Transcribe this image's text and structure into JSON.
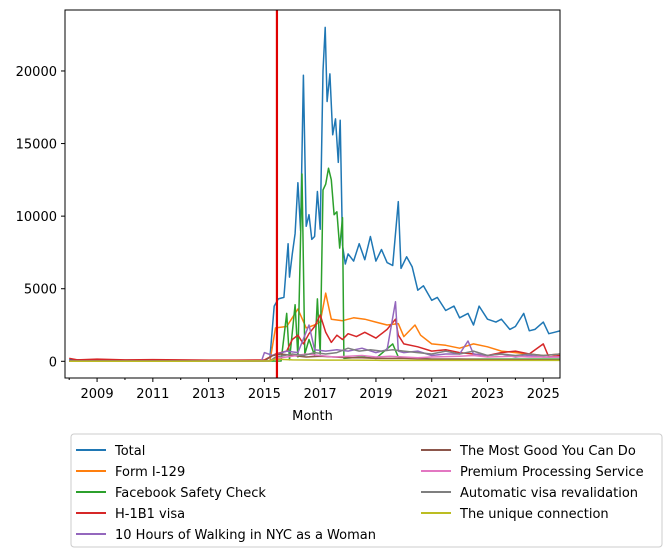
{
  "chart_data": {
    "type": "line",
    "title": "",
    "xlabel": "Month",
    "ylabel": "",
    "xlim": [
      2007.85,
      2025.6
    ],
    "ylim": [
      -1150,
      24200
    ],
    "x_ticks": [
      2009,
      2011,
      2013,
      2015,
      2017,
      2019,
      2021,
      2023,
      2025
    ],
    "y_ticks": [
      0,
      5000,
      10000,
      15000,
      20000
    ],
    "grid": false,
    "legend_placement": "below plot, two columns",
    "marker_line": {
      "x": 2015.45,
      "color": "#e00000"
    },
    "series": [
      {
        "name": "Total",
        "color": "#1f77b4",
        "points": [
          [
            2008.0,
            120
          ],
          [
            2008.5,
            100
          ],
          [
            2009,
            90
          ],
          [
            2010,
            80
          ],
          [
            2011,
            80
          ],
          [
            2012,
            70
          ],
          [
            2013,
            60
          ],
          [
            2014,
            60
          ],
          [
            2015.0,
            60
          ],
          [
            2015.2,
            300
          ],
          [
            2015.35,
            3800
          ],
          [
            2015.5,
            4300
          ],
          [
            2015.7,
            4400
          ],
          [
            2015.85,
            8100
          ],
          [
            2015.9,
            5800
          ],
          [
            2016.0,
            7400
          ],
          [
            2016.1,
            8800
          ],
          [
            2016.2,
            12300
          ],
          [
            2016.3,
            9000
          ],
          [
            2016.4,
            19700
          ],
          [
            2016.5,
            9300
          ],
          [
            2016.6,
            10100
          ],
          [
            2016.7,
            8400
          ],
          [
            2016.8,
            8600
          ],
          [
            2016.9,
            11700
          ],
          [
            2017.0,
            9100
          ],
          [
            2017.1,
            20000
          ],
          [
            2017.18,
            23000
          ],
          [
            2017.25,
            17900
          ],
          [
            2017.35,
            19800
          ],
          [
            2017.45,
            15600
          ],
          [
            2017.55,
            16700
          ],
          [
            2017.65,
            13700
          ],
          [
            2017.72,
            16600
          ],
          [
            2017.8,
            8000
          ],
          [
            2017.9,
            6700
          ],
          [
            2018.0,
            7400
          ],
          [
            2018.2,
            6900
          ],
          [
            2018.4,
            8100
          ],
          [
            2018.6,
            7000
          ],
          [
            2018.8,
            8600
          ],
          [
            2019.0,
            6900
          ],
          [
            2019.2,
            7700
          ],
          [
            2019.4,
            6800
          ],
          [
            2019.6,
            6600
          ],
          [
            2019.8,
            11000
          ],
          [
            2019.9,
            6400
          ],
          [
            2020.1,
            7200
          ],
          [
            2020.3,
            6500
          ],
          [
            2020.5,
            4900
          ],
          [
            2020.7,
            5200
          ],
          [
            2021.0,
            4200
          ],
          [
            2021.2,
            4400
          ],
          [
            2021.5,
            3500
          ],
          [
            2021.8,
            3800
          ],
          [
            2022.0,
            3000
          ],
          [
            2022.3,
            3300
          ],
          [
            2022.5,
            2500
          ],
          [
            2022.7,
            3800
          ],
          [
            2023.0,
            2900
          ],
          [
            2023.3,
            2700
          ],
          [
            2023.5,
            2900
          ],
          [
            2023.8,
            2200
          ],
          [
            2024.0,
            2400
          ],
          [
            2024.3,
            3300
          ],
          [
            2024.5,
            2100
          ],
          [
            2024.7,
            2200
          ],
          [
            2025.0,
            2700
          ],
          [
            2025.2,
            1900
          ],
          [
            2025.4,
            2000
          ],
          [
            2025.6,
            2100
          ]
        ]
      },
      {
        "name": "Form I-129",
        "color": "#ff7f0e",
        "points": [
          [
            2008.0,
            20
          ],
          [
            2010,
            20
          ],
          [
            2012,
            20
          ],
          [
            2014,
            20
          ],
          [
            2015.2,
            30
          ],
          [
            2015.4,
            2300
          ],
          [
            2015.8,
            2400
          ],
          [
            2016.0,
            3000
          ],
          [
            2016.2,
            3600
          ],
          [
            2016.5,
            2300
          ],
          [
            2016.8,
            2500
          ],
          [
            2017.0,
            2700
          ],
          [
            2017.2,
            4700
          ],
          [
            2017.4,
            2900
          ],
          [
            2017.8,
            2800
          ],
          [
            2018.2,
            3000
          ],
          [
            2018.6,
            2900
          ],
          [
            2019.0,
            2700
          ],
          [
            2019.4,
            2500
          ],
          [
            2019.8,
            2600
          ],
          [
            2020.0,
            1700
          ],
          [
            2020.4,
            2500
          ],
          [
            2020.6,
            1800
          ],
          [
            2021.0,
            1200
          ],
          [
            2021.5,
            1100
          ],
          [
            2022.0,
            900
          ],
          [
            2022.5,
            1200
          ],
          [
            2023.0,
            1000
          ],
          [
            2023.5,
            700
          ],
          [
            2024.0,
            600
          ],
          [
            2024.5,
            500
          ],
          [
            2025.0,
            400
          ],
          [
            2025.6,
            500
          ]
        ]
      },
      {
        "name": "Facebook Safety Check",
        "color": "#2ca02c",
        "points": [
          [
            2008.0,
            10
          ],
          [
            2011,
            10
          ],
          [
            2014,
            10
          ],
          [
            2015.6,
            20
          ],
          [
            2015.8,
            3300
          ],
          [
            2015.9,
            100
          ],
          [
            2016.1,
            3900
          ],
          [
            2016.2,
            300
          ],
          [
            2016.35,
            12900
          ],
          [
            2016.45,
            500
          ],
          [
            2016.6,
            1500
          ],
          [
            2016.8,
            400
          ],
          [
            2016.9,
            4300
          ],
          [
            2017.0,
            500
          ],
          [
            2017.1,
            11800
          ],
          [
            2017.2,
            12200
          ],
          [
            2017.3,
            13300
          ],
          [
            2017.4,
            12500
          ],
          [
            2017.5,
            10100
          ],
          [
            2017.6,
            10300
          ],
          [
            2017.7,
            7800
          ],
          [
            2017.8,
            9900
          ],
          [
            2017.85,
            200
          ],
          [
            2018.5,
            300
          ],
          [
            2019.0,
            200
          ],
          [
            2019.6,
            1200
          ],
          [
            2019.8,
            300
          ],
          [
            2020.5,
            200
          ],
          [
            2021,
            150
          ],
          [
            2022,
            150
          ],
          [
            2023,
            150
          ],
          [
            2024,
            150
          ],
          [
            2025.6,
            150
          ]
        ]
      },
      {
        "name": "H-1B1 visa",
        "color": "#d62728",
        "points": [
          [
            2008.0,
            200
          ],
          [
            2008.3,
            100
          ],
          [
            2009,
            150
          ],
          [
            2010,
            100
          ],
          [
            2011,
            120
          ],
          [
            2012,
            100
          ],
          [
            2013,
            80
          ],
          [
            2014,
            80
          ],
          [
            2015.0,
            100
          ],
          [
            2015.4,
            500
          ],
          [
            2015.8,
            700
          ],
          [
            2016.0,
            1500
          ],
          [
            2016.2,
            1800
          ],
          [
            2016.4,
            1200
          ],
          [
            2016.6,
            1900
          ],
          [
            2016.8,
            2400
          ],
          [
            2017.0,
            3200
          ],
          [
            2017.2,
            2000
          ],
          [
            2017.4,
            1300
          ],
          [
            2017.6,
            1800
          ],
          [
            2017.8,
            1500
          ],
          [
            2018.0,
            1900
          ],
          [
            2018.3,
            1700
          ],
          [
            2018.6,
            2000
          ],
          [
            2019.0,
            1600
          ],
          [
            2019.4,
            2200
          ],
          [
            2019.7,
            2900
          ],
          [
            2019.8,
            1800
          ],
          [
            2020.0,
            1200
          ],
          [
            2020.5,
            1000
          ],
          [
            2021.0,
            700
          ],
          [
            2021.5,
            800
          ],
          [
            2022.0,
            600
          ],
          [
            2022.5,
            500
          ],
          [
            2023.0,
            400
          ],
          [
            2023.5,
            600
          ],
          [
            2024.0,
            700
          ],
          [
            2024.5,
            500
          ],
          [
            2025.0,
            1200
          ],
          [
            2025.2,
            300
          ],
          [
            2025.6,
            400
          ]
        ]
      },
      {
        "name": "10 Hours of Walking in NYC as a Woman",
        "color": "#9467bd",
        "points": [
          [
            2008.0,
            30
          ],
          [
            2012,
            30
          ],
          [
            2014.9,
            40
          ],
          [
            2015.0,
            600
          ],
          [
            2015.3,
            400
          ],
          [
            2015.8,
            700
          ],
          [
            2016.2,
            600
          ],
          [
            2016.6,
            2500
          ],
          [
            2016.8,
            800
          ],
          [
            2017.2,
            700
          ],
          [
            2017.6,
            800
          ],
          [
            2018.0,
            700
          ],
          [
            2018.5,
            900
          ],
          [
            2019.0,
            600
          ],
          [
            2019.4,
            800
          ],
          [
            2019.7,
            4100
          ],
          [
            2019.8,
            700
          ],
          [
            2020.0,
            600
          ],
          [
            2020.5,
            700
          ],
          [
            2021.0,
            400
          ],
          [
            2021.5,
            500
          ],
          [
            2022.0,
            500
          ],
          [
            2022.3,
            1400
          ],
          [
            2022.5,
            500
          ],
          [
            2023.0,
            400
          ],
          [
            2023.5,
            500
          ],
          [
            2024.0,
            300
          ],
          [
            2024.5,
            400
          ],
          [
            2025.0,
            300
          ],
          [
            2025.6,
            300
          ]
        ]
      },
      {
        "name": "The Most Good You Can Do",
        "color": "#8c564b",
        "points": [
          [
            2008.0,
            20
          ],
          [
            2012,
            20
          ],
          [
            2015.0,
            30
          ],
          [
            2015.3,
            400
          ],
          [
            2015.6,
            500
          ],
          [
            2016.0,
            400
          ],
          [
            2016.5,
            300
          ],
          [
            2017.0,
            350
          ],
          [
            2017.5,
            300
          ],
          [
            2018.0,
            250
          ],
          [
            2018.5,
            250
          ],
          [
            2019.0,
            200
          ],
          [
            2020.0,
            200
          ],
          [
            2021.0,
            150
          ],
          [
            2022.0,
            150
          ],
          [
            2023.0,
            120
          ],
          [
            2024.0,
            120
          ],
          [
            2025.6,
            100
          ]
        ]
      },
      {
        "name": "Premium Processing Service",
        "color": "#e377c2",
        "points": [
          [
            2008.0,
            10
          ],
          [
            2012,
            10
          ],
          [
            2015.2,
            20
          ],
          [
            2015.4,
            200
          ],
          [
            2016.0,
            350
          ],
          [
            2016.5,
            500
          ],
          [
            2017.0,
            400
          ],
          [
            2017.5,
            300
          ],
          [
            2018.0,
            350
          ],
          [
            2018.5,
            400
          ],
          [
            2019.0,
            300
          ],
          [
            2019.5,
            350
          ],
          [
            2020.0,
            300
          ],
          [
            2020.5,
            250
          ],
          [
            2021.0,
            300
          ],
          [
            2022.0,
            350
          ],
          [
            2022.5,
            400
          ],
          [
            2023.0,
            300
          ],
          [
            2024.0,
            350
          ],
          [
            2024.5,
            300
          ],
          [
            2025.0,
            300
          ],
          [
            2025.6,
            300
          ]
        ]
      },
      {
        "name": "Automatic visa revalidation",
        "color": "#7f7f7f",
        "points": [
          [
            2008.0,
            10
          ],
          [
            2012,
            10
          ],
          [
            2015.2,
            20
          ],
          [
            2015.4,
            300
          ],
          [
            2016.0,
            500
          ],
          [
            2016.4,
            400
          ],
          [
            2016.8,
            600
          ],
          [
            2017.2,
            500
          ],
          [
            2017.6,
            600
          ],
          [
            2018.0,
            900
          ],
          [
            2018.4,
            700
          ],
          [
            2018.8,
            800
          ],
          [
            2019.2,
            700
          ],
          [
            2019.6,
            800
          ],
          [
            2020.0,
            700
          ],
          [
            2020.5,
            600
          ],
          [
            2021.0,
            500
          ],
          [
            2021.5,
            700
          ],
          [
            2022.0,
            500
          ],
          [
            2022.5,
            700
          ],
          [
            2023.0,
            400
          ],
          [
            2023.5,
            500
          ],
          [
            2024.0,
            400
          ],
          [
            2024.5,
            500
          ],
          [
            2025.0,
            400
          ],
          [
            2025.6,
            500
          ]
        ]
      },
      {
        "name": "The unique connection",
        "color": "#bcbd22",
        "points": [
          [
            2008.0,
            10
          ],
          [
            2012,
            10
          ],
          [
            2015.2,
            20
          ],
          [
            2015.4,
            150
          ],
          [
            2016.0,
            100
          ],
          [
            2017.0,
            80
          ],
          [
            2018.0,
            80
          ],
          [
            2019.0,
            70
          ],
          [
            2020.0,
            60
          ],
          [
            2021.0,
            60
          ],
          [
            2022.0,
            60
          ],
          [
            2023.0,
            60
          ],
          [
            2024.0,
            60
          ],
          [
            2025.6,
            60
          ]
        ]
      }
    ]
  }
}
